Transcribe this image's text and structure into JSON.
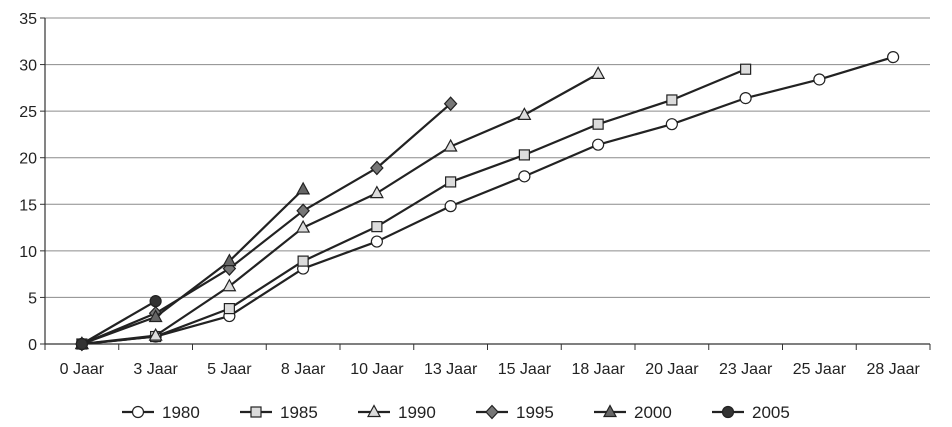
{
  "chart_data": {
    "type": "line",
    "title": "",
    "xlabel": "",
    "ylabel": "",
    "categories": [
      "0 Jaar",
      "3 Jaar",
      "5 Jaar",
      "8 Jaar",
      "10 Jaar",
      "13 Jaar",
      "15 Jaar",
      "18 Jaar",
      "20 Jaar",
      "23 Jaar",
      "25 Jaar",
      "28 Jaar"
    ],
    "ylim": [
      0,
      35
    ],
    "yticks": [
      0,
      5,
      10,
      15,
      20,
      25,
      30,
      35
    ],
    "grid": "horizontal",
    "legend_position": "bottom",
    "series": [
      {
        "name": "1980",
        "marker": "circle",
        "fill": "#ffffff",
        "points": [
          [
            0,
            0
          ],
          [
            1,
            0.8
          ],
          [
            2,
            3.0
          ],
          [
            3,
            8.1
          ],
          [
            4,
            11.0
          ],
          [
            5,
            14.8
          ],
          [
            6,
            18.0
          ],
          [
            7,
            21.4
          ],
          [
            8,
            23.6
          ],
          [
            9,
            26.4
          ],
          [
            10,
            28.4
          ],
          [
            11,
            30.8
          ]
        ]
      },
      {
        "name": "1985",
        "marker": "square",
        "fill": "#dcdcdc",
        "points": [
          [
            0,
            0
          ],
          [
            1,
            0.8
          ],
          [
            2,
            3.8
          ],
          [
            3,
            8.9
          ],
          [
            4,
            12.6
          ],
          [
            5,
            17.4
          ],
          [
            6,
            20.3
          ],
          [
            7,
            23.6
          ],
          [
            8,
            26.2
          ],
          [
            9,
            29.5
          ]
        ]
      },
      {
        "name": "1990",
        "marker": "triangle",
        "fill": "#dcdcdc",
        "points": [
          [
            0,
            0
          ],
          [
            1,
            0.9
          ],
          [
            2,
            6.2
          ],
          [
            3,
            12.5
          ],
          [
            4,
            16.2
          ],
          [
            5,
            21.2
          ],
          [
            6,
            24.6
          ],
          [
            7,
            29.0
          ]
        ]
      },
      {
        "name": "1995",
        "marker": "diamond",
        "fill": "#777777",
        "points": [
          [
            0,
            0
          ],
          [
            1,
            3.3
          ],
          [
            2,
            8.1
          ],
          [
            3,
            14.3
          ],
          [
            4,
            18.9
          ],
          [
            5,
            25.8
          ]
        ]
      },
      {
        "name": "2000",
        "marker": "triangle",
        "fill": "#666666",
        "points": [
          [
            0,
            0
          ],
          [
            1,
            2.9
          ],
          [
            2,
            8.9
          ],
          [
            3,
            16.6
          ]
        ]
      },
      {
        "name": "2005",
        "marker": "circle",
        "fill": "#333333",
        "points": [
          [
            0,
            0
          ],
          [
            1,
            4.6
          ]
        ]
      }
    ]
  }
}
